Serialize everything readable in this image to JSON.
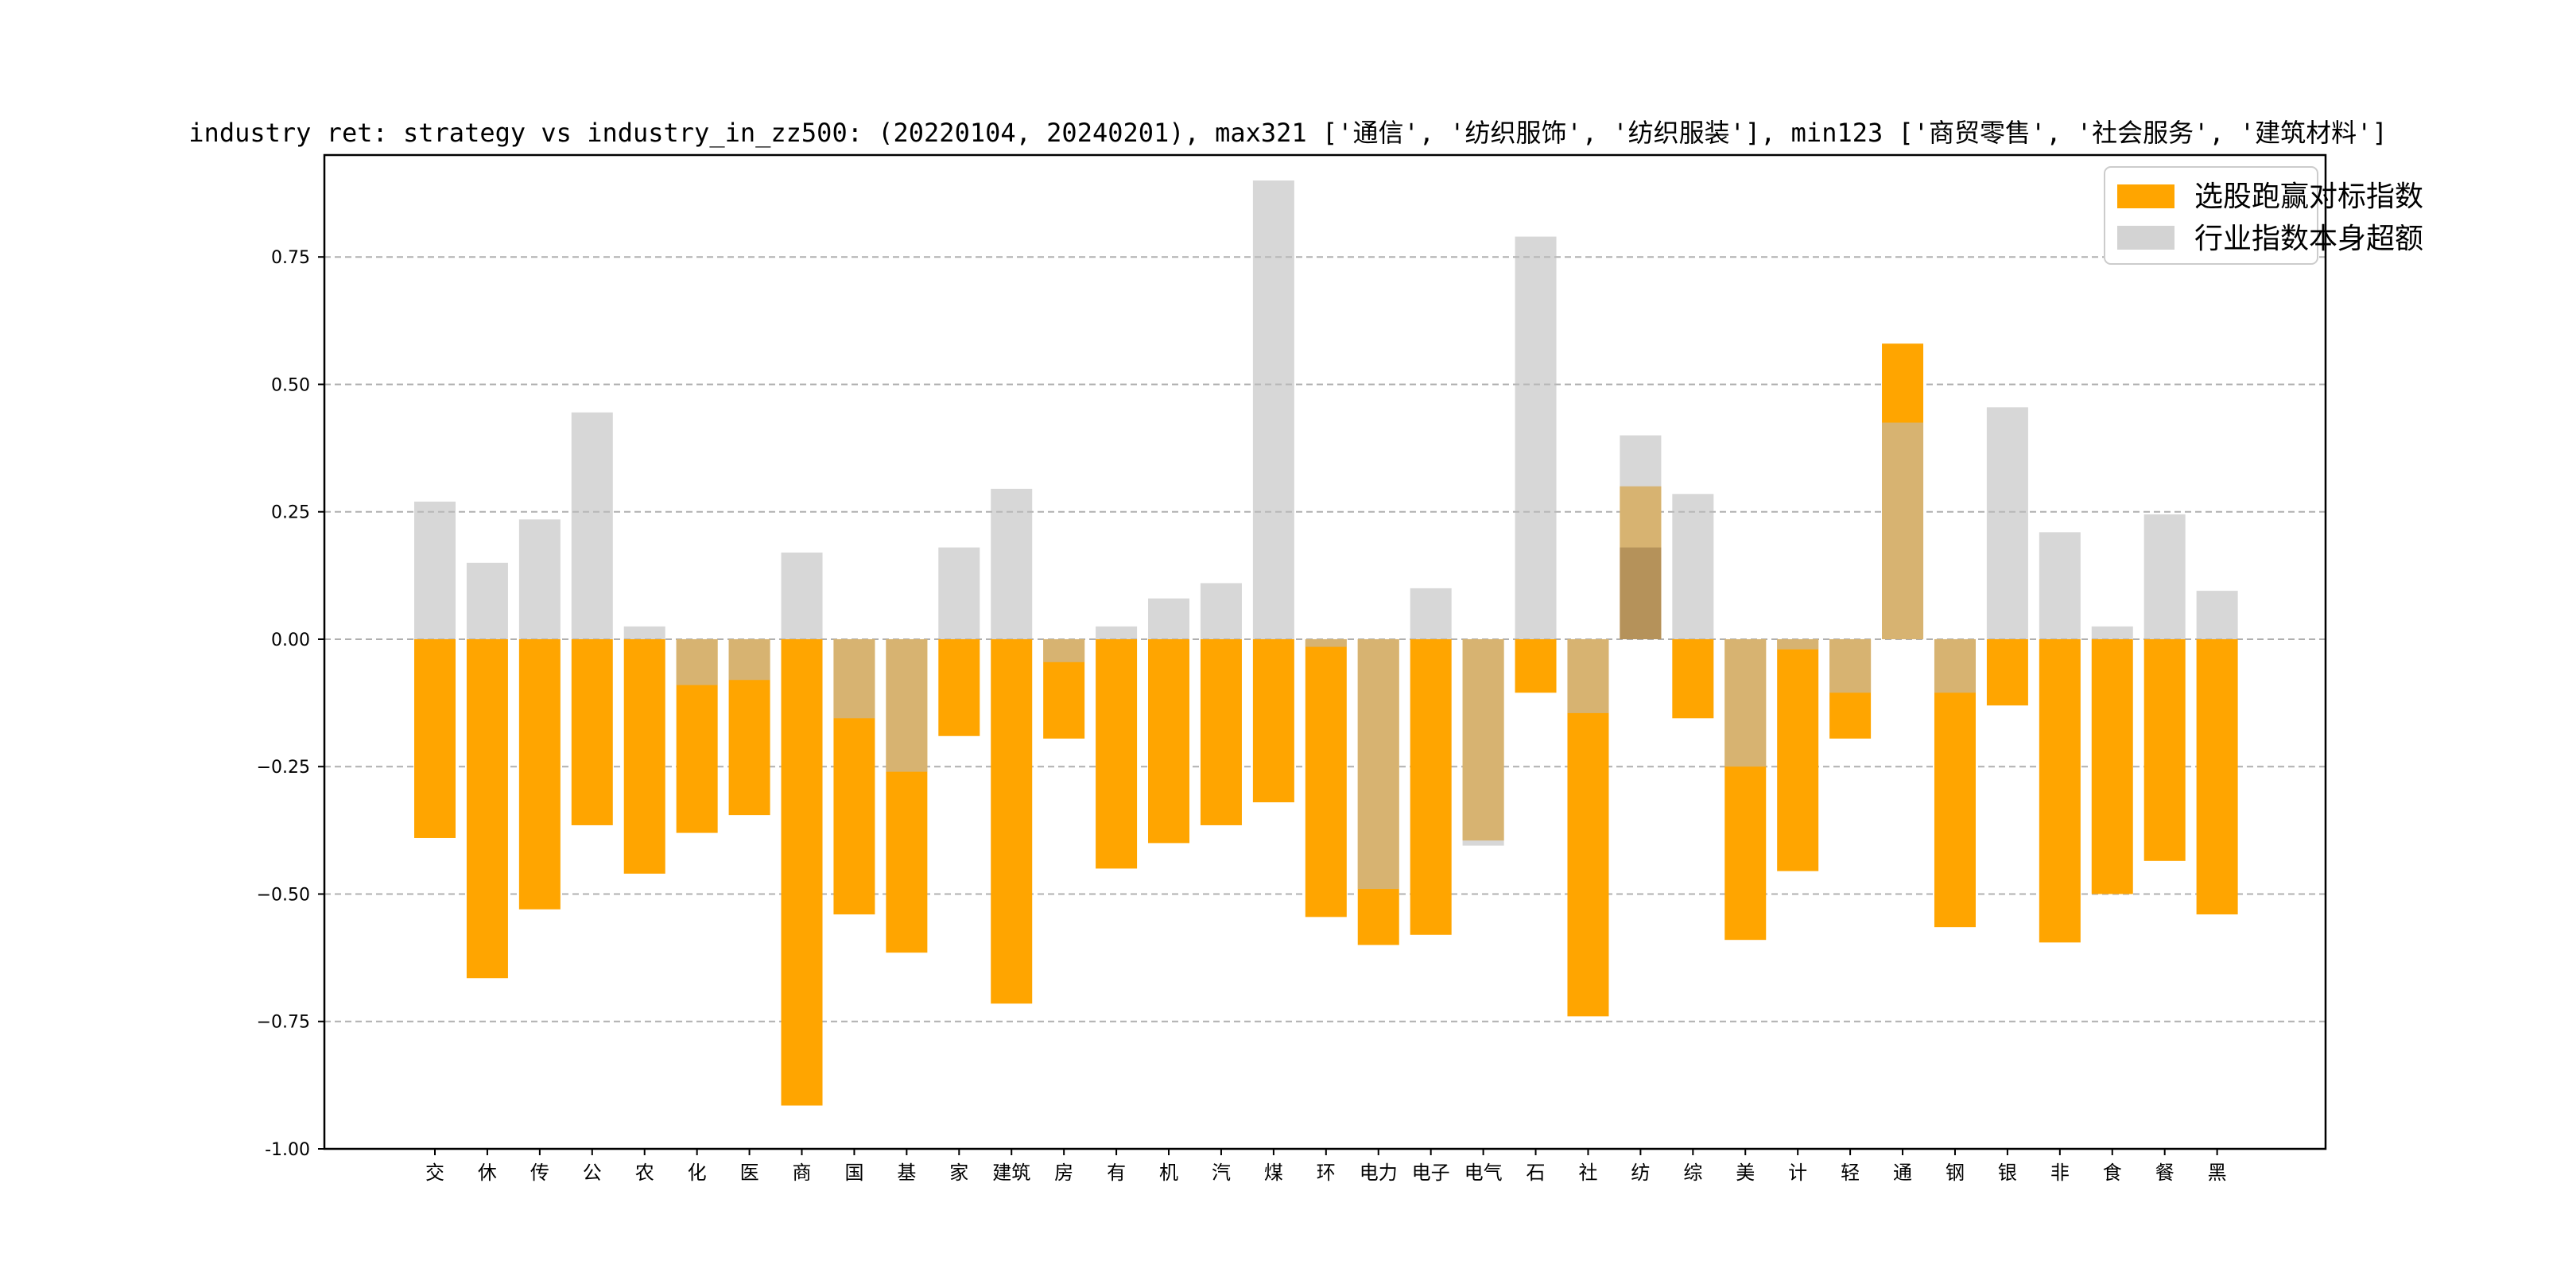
{
  "chart_data": {
    "type": "bar",
    "title": "industry ret: strategy vs industry_in_zz500: (20220104, 20240201), max321 ['通信', '纺织服饰', '纺织服装'], min123 ['商贸零售', '社会服务', '建筑材料']",
    "xlabel": "",
    "ylabel": "",
    "ylim": [
      -1.0,
      0.95
    ],
    "yticks": [
      "-1.00",
      "−0.75",
      "−0.50",
      "−0.25",
      "0.00",
      "0.25",
      "0.50",
      "0.75"
    ],
    "ytick_values": [
      -1.0,
      -0.75,
      -0.5,
      -0.25,
      0.0,
      0.25,
      0.5,
      0.75
    ],
    "grid": true,
    "legend_position": "top-right",
    "categories": [
      "交",
      "休",
      "传",
      "公",
      "农",
      "化",
      "医",
      "商",
      "国",
      "基",
      "家",
      "建筑",
      "房",
      "有",
      "机",
      "汽",
      "煤",
      "环",
      "电力",
      "电子",
      "电气",
      "石",
      "社",
      "纺",
      "综",
      "美",
      "计",
      "轻",
      "通",
      "钢",
      "银",
      "非",
      "食",
      "餐",
      "黑"
    ],
    "series": [
      {
        "name": "选股跑赢对标指数",
        "color": "#FFA500",
        "values": [
          -0.39,
          -0.665,
          -0.53,
          -0.365,
          -0.46,
          -0.38,
          -0.345,
          -0.915,
          -0.54,
          -0.615,
          -0.19,
          -0.715,
          -0.195,
          -0.45,
          -0.4,
          -0.365,
          -0.32,
          -0.545,
          -0.6,
          -0.58,
          -0.395,
          -0.105,
          -0.74,
          0.3,
          -0.155,
          -0.59,
          -0.455,
          -0.195,
          0.58,
          -0.565,
          -0.13,
          -0.595,
          -0.5,
          -0.435,
          -0.54
        ]
      },
      {
        "name": "行业指数本身超额",
        "color": "#D3D3D3",
        "values": [
          0.27,
          0.15,
          0.235,
          0.445,
          0.025,
          -0.09,
          -0.08,
          0.17,
          -0.155,
          -0.26,
          0.18,
          0.295,
          -0.045,
          0.025,
          0.08,
          0.11,
          0.9,
          -0.015,
          -0.49,
          0.1,
          -0.405,
          0.79,
          -0.145,
          0.4,
          0.285,
          -0.25,
          -0.02,
          -0.105,
          0.425,
          -0.105,
          0.455,
          0.21,
          0.025,
          0.245,
          0.095
        ]
      }
    ],
    "overlay_series": {
      "name": "",
      "color": "#CC9966",
      "note_values": [
        {
          "category": "纺",
          "from": 0.0,
          "to": 0.18
        }
      ]
    }
  }
}
